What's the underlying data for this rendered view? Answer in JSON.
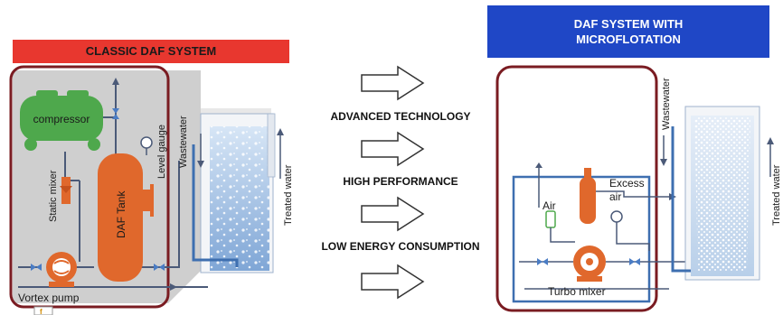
{
  "left_panel": {
    "banner": "CLASSIC DAF SYSTEM",
    "compressor_label": "compressor",
    "static_mixer_label": "Static mixer",
    "level_gauge_label": "Level gauge",
    "tank_label": "DAF Tank",
    "vortex_pump_label": "Vortex pump",
    "wastewater_label": "Wastewater",
    "treated_water_label": "Treated water",
    "corner_badge": "f"
  },
  "right_panel": {
    "banner_line1": "DAF SYSTEM  WITH",
    "banner_line2": "MICROFLOTATION",
    "air_label": "Air",
    "excess_air_line1": "Excess",
    "excess_air_line2": "air",
    "turbo_mixer_label": "Turbo mixer",
    "wastewater_label": "Wastewater",
    "treated_water_label": "Treated water"
  },
  "benefits": [
    "ADVANCED TECHNOLOGY",
    "HIGH PERFORMANCE",
    "LOW ENERGY CONSUMPTION"
  ],
  "colors": {
    "left_banner": "#e8372f",
    "right_banner": "#1f47c6",
    "frame": "#7a1c22",
    "tank": "#e0682c",
    "compressor": "#4ea84c",
    "pipe_blue": "#3e6fb0",
    "water": "#9fbfe2"
  }
}
